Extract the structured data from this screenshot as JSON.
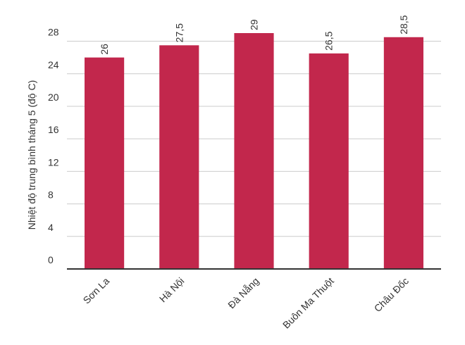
{
  "chart_data": {
    "type": "bar",
    "y_label": "Nhiệt độ trung bình tháng 5 (độ C)",
    "categories": [
      "Sơn La",
      "Hà Nội",
      "Đà Nẵng",
      "Buôn Ma Thuột",
      "Châu Đốc"
    ],
    "values": [
      26,
      27.5,
      29,
      26.5,
      28.5
    ],
    "value_labels": [
      "26",
      "27,5",
      "29",
      "26,5",
      "28,5"
    ],
    "color": "#c2274c",
    "ylim": [
      0,
      29
    ],
    "yticks": [
      0,
      4,
      8,
      12,
      16,
      20,
      24,
      28
    ],
    "grid": true
  }
}
